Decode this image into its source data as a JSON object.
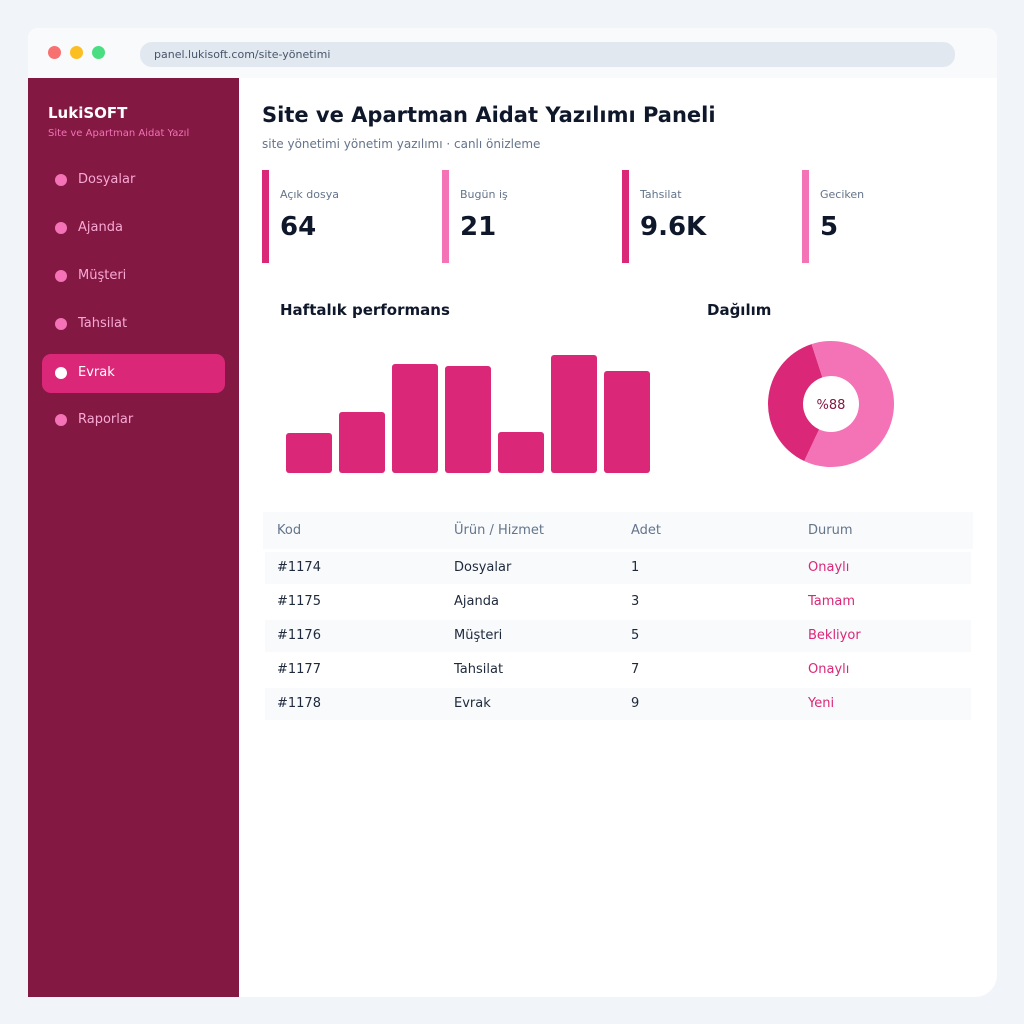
{
  "browser": {
    "url": "panel.lukisoft.com/site-yönetimi"
  },
  "sidebar": {
    "brand": "LukiSOFT",
    "subtitle": "Site ve Apartman Aidat Yazıl",
    "items": [
      {
        "label": "Dosyalar",
        "active": false
      },
      {
        "label": "Ajanda",
        "active": false
      },
      {
        "label": "Müşteri",
        "active": false
      },
      {
        "label": "Tahsilat",
        "active": false
      },
      {
        "label": "Evrak",
        "active": true
      },
      {
        "label": "Raporlar",
        "active": false
      }
    ]
  },
  "header": {
    "title": "Site ve Apartman Aidat Yazılımı Paneli",
    "subtitle": "site yönetimi yönetim yazılımı · canlı önizleme"
  },
  "stats": [
    {
      "label": "Açık dosya",
      "value": "64",
      "color": "#db2777"
    },
    {
      "label": "Bugün iş",
      "value": "21",
      "color": "#f472b6"
    },
    {
      "label": "Tahsilat",
      "value": "9.6K",
      "color": "#db2777"
    },
    {
      "label": "Geciken",
      "value": "5",
      "color": "#f472b6"
    }
  ],
  "charts": {
    "bar_title": "Haftalık performans",
    "donut_title": "Dağılım",
    "donut_label": "%88"
  },
  "chart_data": [
    {
      "type": "bar",
      "title": "Haftalık performans",
      "values": [
        40,
        61,
        109,
        107,
        41,
        118,
        102
      ],
      "ylim": [
        0,
        140
      ],
      "color": "#db2777"
    },
    {
      "type": "pie",
      "title": "Dağılım",
      "center_label": "%88",
      "slices": [
        {
          "value": 62,
          "color": "#f472b6"
        },
        {
          "value": 38,
          "color": "#db2777"
        }
      ]
    }
  ],
  "table": {
    "headers": [
      "Kod",
      "Ürün / Hizmet",
      "Adet",
      "Durum"
    ],
    "rows": [
      [
        "#1174",
        "Dosyalar",
        "1",
        "Onaylı"
      ],
      [
        "#1175",
        "Ajanda",
        "3",
        "Tamam"
      ],
      [
        "#1176",
        "Müşteri",
        "5",
        "Bekliyor"
      ],
      [
        "#1177",
        "Tahsilat",
        "7",
        "Onaylı"
      ],
      [
        "#1178",
        "Evrak",
        "9",
        "Yeni"
      ]
    ]
  },
  "colors": {
    "sidebar": "#831843",
    "accent": "#db2777",
    "accent_light": "#f472b6"
  }
}
